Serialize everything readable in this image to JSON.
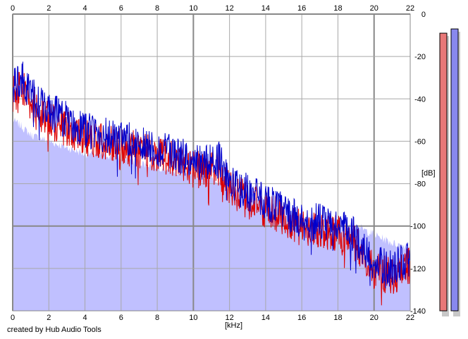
{
  "chart_data": {
    "type": "area",
    "xlabel": "[kHz]",
    "ylabel": "[dB]",
    "xlim": [
      0,
      22
    ],
    "ylim": [
      -140,
      0
    ],
    "x_ticks": [
      0,
      2,
      4,
      6,
      8,
      10,
      12,
      14,
      16,
      18,
      20,
      22
    ],
    "y_ticks": [
      0,
      -20,
      -40,
      -60,
      -80,
      -100,
      -120,
      -140
    ],
    "y_tick_labels": [
      "0",
      "-20",
      "-40",
      "-60",
      "-80",
      "-100",
      "-120",
      "-140"
    ],
    "x_tick_labels": [
      "0",
      "2",
      "4",
      "6",
      "8",
      "10",
      "12",
      "14",
      "16",
      "18",
      "20",
      "22"
    ],
    "grid": true,
    "x_axis_labels_on_top_and_bottom": true,
    "series": [
      {
        "color": "#0000cc",
        "x": [
          0,
          0.5,
          1,
          2,
          3,
          4,
          5,
          6,
          7,
          8,
          9,
          10,
          11,
          11.5,
          12,
          13,
          14,
          15,
          16,
          17,
          18,
          19,
          20,
          21,
          22
        ],
        "values": [
          -35,
          -30,
          -38,
          -46,
          -50,
          -55,
          -57,
          -60,
          -60,
          -64,
          -66,
          -70,
          -70,
          -68,
          -80,
          -84,
          -88,
          -93,
          -98,
          -98,
          -100,
          -105,
          -118,
          -120,
          -115
        ]
      },
      {
        "color": "#dd0000",
        "x": [
          0,
          0.5,
          1,
          2,
          3,
          4,
          5,
          6,
          7,
          8,
          9,
          10,
          11,
          11.5,
          12,
          13,
          14,
          15,
          16,
          17,
          18,
          19,
          20,
          21,
          22
        ],
        "values": [
          -38,
          -34,
          -42,
          -50,
          -54,
          -58,
          -60,
          -63,
          -64,
          -66,
          -68,
          -73,
          -74,
          -74,
          -82,
          -88,
          -92,
          -96,
          -101,
          -102,
          -104,
          -108,
          -121,
          -124,
          -118
        ]
      },
      {
        "color": "#c0c0ff",
        "x": [
          0,
          0.5,
          1,
          2,
          3,
          4,
          5,
          6,
          7,
          8,
          9,
          10,
          11,
          11.5,
          12,
          13,
          14,
          15,
          16,
          17,
          18,
          19,
          20,
          21,
          22
        ],
        "values": [
          -50,
          -53,
          -57,
          -60,
          -63,
          -66,
          -66,
          -68,
          -70,
          -72,
          -74,
          -76,
          -77,
          -79,
          -82,
          -86,
          -89,
          -92,
          -95,
          -96,
          -98,
          -100,
          -104,
          -108,
          -110
        ]
      }
    ],
    "level_meters": [
      {
        "color": "#e87878",
        "level_db": -9
      },
      {
        "color": "#8888ee",
        "level_db": -7
      }
    ]
  },
  "footer": {
    "credit": "created by Hub Audio Tools"
  }
}
